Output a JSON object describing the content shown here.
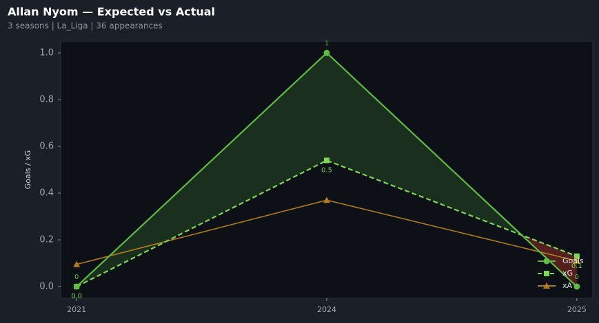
{
  "header": {
    "title": "Allan Nyom — Expected vs Actual",
    "subtitle": "3 seasons | La_Liga | 36 appearances"
  },
  "chart_data": {
    "type": "line",
    "y_label": "Goals / xG",
    "categories": [
      "2021",
      "2024",
      "2025"
    ],
    "series": [
      {
        "name": "Goals",
        "color": "#5fba46",
        "dash": "solid",
        "marker": "circle",
        "values": [
          0,
          1,
          0
        ]
      },
      {
        "name": "xG",
        "color": "#7dd65a",
        "dash": "dashed",
        "marker": "square",
        "values": [
          0,
          0.54,
          0.13
        ],
        "value_labels": [
          "0.0",
          "0.5",
          "0.1"
        ]
      },
      {
        "name": "xA",
        "color": "#b07a1e",
        "dash": "solid",
        "marker": "triangle",
        "values": [
          0.095,
          0.37,
          0.11
        ]
      }
    ],
    "fill_above_color": "#5fba46",
    "fill_below_color": "#c0392b",
    "ylim": [
      -0.05,
      1.05
    ],
    "yticks": [
      {
        "value": 0,
        "label": "0.0"
      },
      0.2,
      0.4,
      0.6,
      0.8,
      {
        "value": 1,
        "label": "1.0"
      }
    ],
    "grid": false,
    "legend": "lower right"
  }
}
